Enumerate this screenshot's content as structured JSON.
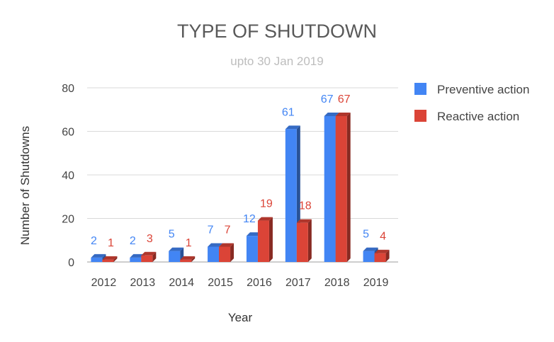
{
  "chart_data": {
    "type": "bar",
    "title": "TYPE OF SHUTDOWN",
    "subtitle": "upto 30 Jan 2019",
    "xlabel": "Year",
    "ylabel": "Number of Shutdowns",
    "categories": [
      "2012",
      "2013",
      "2014",
      "2015",
      "2016",
      "2017",
      "2018",
      "2019"
    ],
    "series": [
      {
        "name": "Preventive action",
        "color": "#4285f4",
        "values": [
          2,
          2,
          5,
          7,
          12,
          61,
          67,
          5
        ]
      },
      {
        "name": "Reactive action",
        "color": "#db4437",
        "values": [
          1,
          3,
          1,
          7,
          19,
          18,
          67,
          4
        ]
      }
    ],
    "ylim": [
      0,
      80
    ],
    "yticks": [
      0,
      20,
      40,
      60,
      80
    ],
    "grid": true,
    "legend": "right",
    "data_labels": true
  }
}
